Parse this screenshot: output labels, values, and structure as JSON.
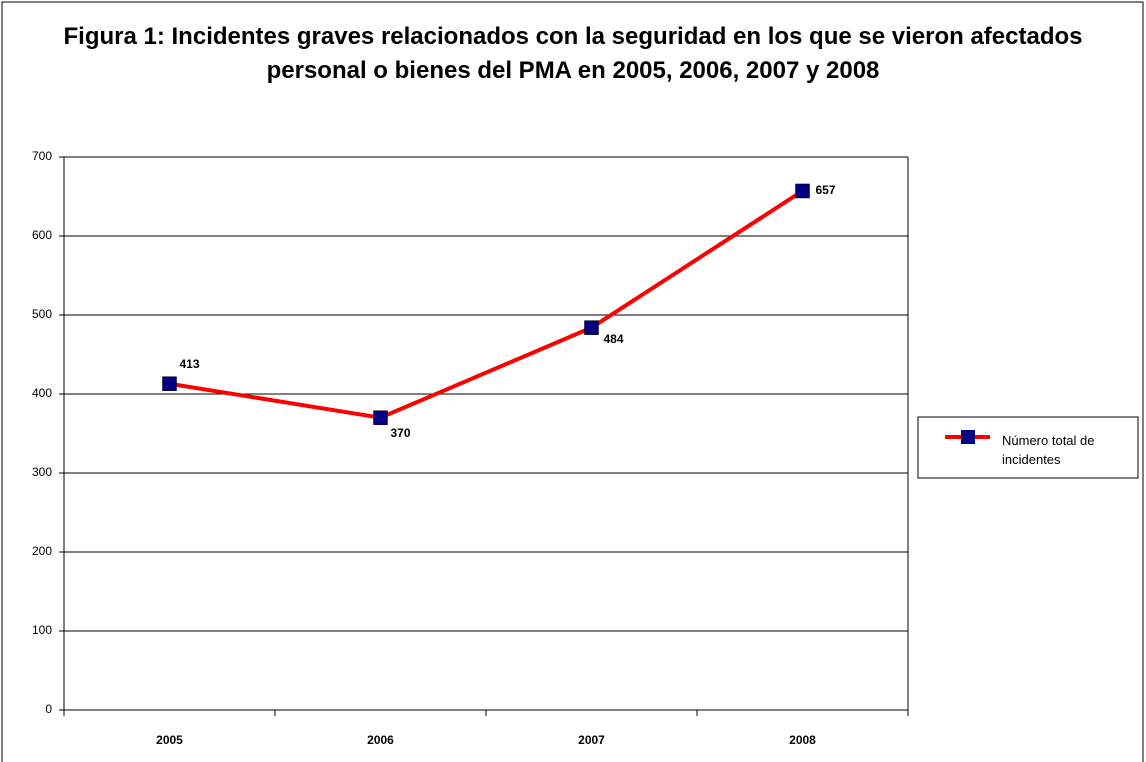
{
  "chart_data": {
    "type": "line",
    "title": "Figura 1: Incidentes graves relacionados con la seguridad en los que se vieron afectados personal o bienes del PMA en 2005, 2006, 2007 y 2008",
    "categories": [
      "2005",
      "2006",
      "2007",
      "2008"
    ],
    "series": [
      {
        "name": "Número total de incidentes",
        "color": "#ff0000",
        "marker_color": "#000080",
        "values": [
          413,
          370,
          484,
          657
        ]
      }
    ],
    "ylim": [
      0,
      700
    ],
    "yticks": [
      0,
      100,
      200,
      300,
      400,
      500,
      600,
      700
    ],
    "grid": true,
    "legend": "right"
  }
}
